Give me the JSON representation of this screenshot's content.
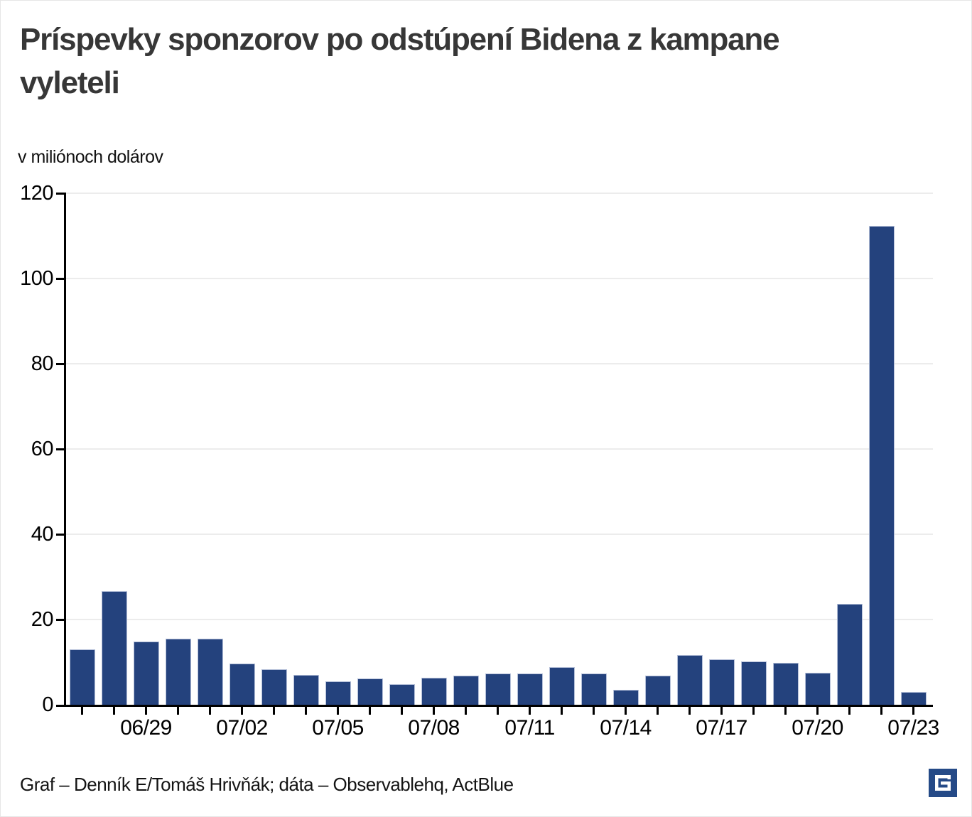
{
  "header": {
    "title_line1": "Príspevky sponzorov po odstúpení Bidena z kampane",
    "title_line2": "vyleteli",
    "subtitle": "v miliónoch dolárov"
  },
  "footer": {
    "credit": "Graf – Denník E/Tomáš Hrivňák; dáta – Observablehq, ActBlue",
    "logo_icon": "dennik-e-logo"
  },
  "chart_data": {
    "type": "bar",
    "title": "Príspevky sponzorov po odstúpení Bidena z kampane vyleteli",
    "ylabel": "v miliónoch dolárov",
    "xlabel": "",
    "categories": [
      "06/27",
      "06/28",
      "06/29",
      "06/30",
      "07/01",
      "07/02",
      "07/03",
      "07/04",
      "07/05",
      "07/06",
      "07/07",
      "07/08",
      "07/09",
      "07/10",
      "07/11",
      "07/12",
      "07/13",
      "07/14",
      "07/15",
      "07/16",
      "07/17",
      "07/18",
      "07/19",
      "07/20",
      "07/21",
      "07/22",
      "07/23"
    ],
    "values": [
      13.0,
      26.7,
      14.8,
      15.5,
      15.5,
      9.6,
      8.3,
      7.0,
      5.5,
      6.2,
      4.8,
      6.3,
      6.9,
      7.4,
      7.4,
      8.8,
      7.3,
      3.5,
      6.9,
      11.7,
      10.7,
      10.2,
      9.9,
      7.5,
      23.6,
      112.3,
      3.0
    ],
    "x_tick_labels": [
      "06/29",
      "07/02",
      "07/05",
      "07/08",
      "07/11",
      "07/14",
      "07/17",
      "07/20",
      "07/23"
    ],
    "yticks": [
      0,
      20,
      40,
      60,
      80,
      100,
      120
    ],
    "ylim": [
      0,
      120
    ],
    "grid": true,
    "legend": "none",
    "bar_color": "#24427d",
    "bar_stroke": "#b4bfd8",
    "grid_color": "#ececec",
    "axis_color": "#000000",
    "logo_color": "#254a87"
  }
}
